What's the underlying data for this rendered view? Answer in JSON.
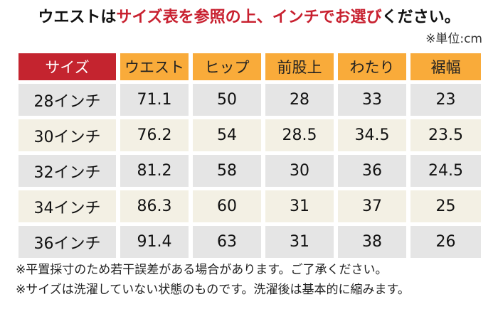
{
  "header": {
    "title_parts": [
      {
        "text": "ウエストは",
        "color": "black"
      },
      {
        "text": "サイズ表を参照の上、インチでお選び",
        "color": "red"
      },
      {
        "text": "ください。",
        "color": "black"
      }
    ],
    "unit_note": "※単位:cm"
  },
  "table": {
    "columns": [
      "サイズ",
      "ウエスト",
      "ヒップ",
      "前股上",
      "わたり",
      "裾幅"
    ],
    "rows": [
      {
        "size": "28インチ",
        "values": [
          "71.1",
          "50",
          "28",
          "33",
          "23"
        ]
      },
      {
        "size": "30インチ",
        "values": [
          "76.2",
          "54",
          "28.5",
          "34.5",
          "23.5"
        ]
      },
      {
        "size": "32インチ",
        "values": [
          "81.2",
          "58",
          "30",
          "36",
          "24.5"
        ]
      },
      {
        "size": "34インチ",
        "values": [
          "86.3",
          "60",
          "31",
          "37",
          "25"
        ]
      },
      {
        "size": "36インチ",
        "values": [
          "91.4",
          "63",
          "31",
          "38",
          "26"
        ]
      }
    ]
  },
  "notes": [
    "※平置採寸のため若干誤差がある場合があります。ご了承ください。",
    "※サイズは洗濯していない状態のものです。洗濯後は基本的に縮みます。"
  ],
  "colors": {
    "accent_red": "#c4242f",
    "header_orange": "#f9ab3a",
    "row_gray": "#e5e5e5",
    "row_cream": "#f3f0e4"
  }
}
